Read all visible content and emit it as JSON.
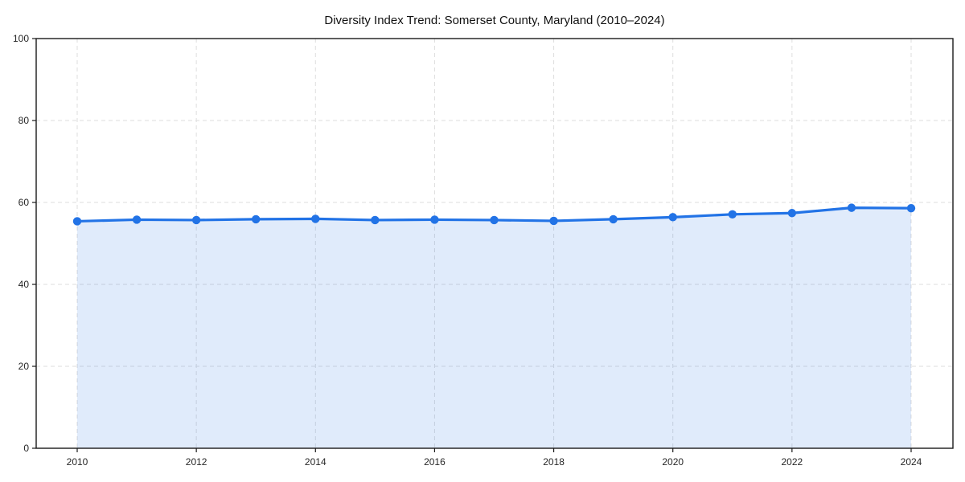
{
  "chart_data": {
    "type": "area",
    "title": "Diversity Index Trend: Somerset County, Maryland (2010–2024)",
    "x": [
      2010,
      2011,
      2012,
      2013,
      2014,
      2015,
      2016,
      2017,
      2018,
      2019,
      2020,
      2021,
      2022,
      2023,
      2024
    ],
    "series": [
      {
        "name": "Diversity Index",
        "values": [
          55.4,
          55.8,
          55.7,
          55.9,
          56.0,
          55.7,
          55.8,
          55.7,
          55.5,
          55.9,
          56.4,
          57.1,
          57.4,
          58.7,
          58.6
        ]
      }
    ],
    "xlabel": "",
    "ylabel": "",
    "ylim": [
      0,
      100
    ],
    "xticks": [
      2010,
      2012,
      2014,
      2016,
      2018,
      2020,
      2022,
      2024
    ],
    "yticks": [
      0,
      20,
      40,
      60,
      80,
      100
    ],
    "grid": true,
    "grid_style": "dashed",
    "legend": "none",
    "marker": "circle",
    "colors": {
      "line": "#2273e6",
      "marker": "#2273e6",
      "fill": "rgba(34, 115, 230, 0.14)",
      "grid": "#dedede",
      "spine": "#1a1a1a",
      "tick": "#1a1a1a",
      "tick_label": "#262626",
      "title": "#111111",
      "background": "#ffffff"
    }
  }
}
